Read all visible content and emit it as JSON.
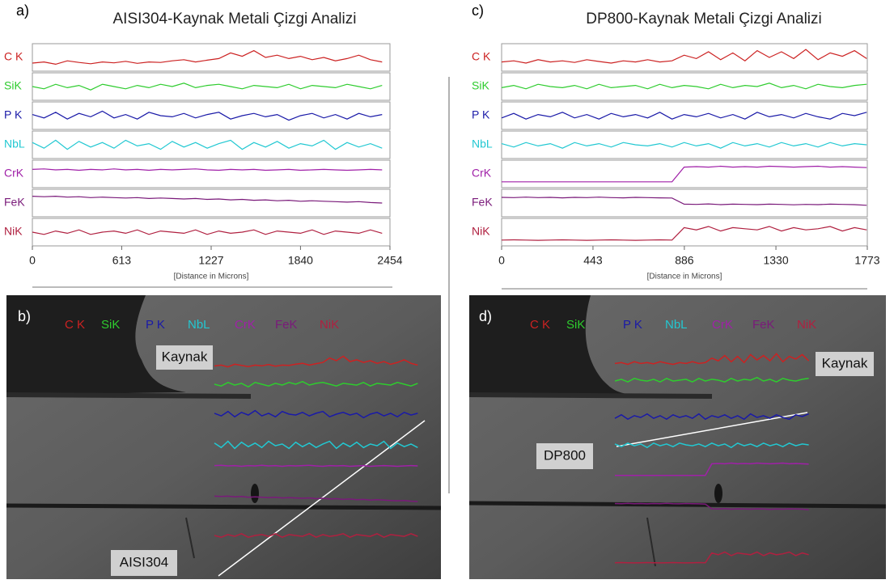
{
  "chart_data": [
    {
      "type": "line",
      "label": "a)",
      "title": "AISI304-Kaynak Metali Çizgi Analizi",
      "x_label": "[Distance in Microns]",
      "xlim": [
        0,
        2454
      ],
      "xticks": [
        0,
        613,
        1227,
        1840,
        2454
      ],
      "ylim": [
        0,
        100
      ],
      "x": [
        0,
        80,
        160,
        240,
        320,
        400,
        480,
        560,
        640,
        720,
        800,
        880,
        960,
        1040,
        1120,
        1200,
        1280,
        1360,
        1440,
        1520,
        1600,
        1680,
        1760,
        1840,
        1920,
        2000,
        2080,
        2160,
        2240,
        2320,
        2400
      ],
      "series": [
        {
          "name": "C K",
          "color": "#cc2222",
          "values": [
            25,
            30,
            20,
            35,
            28,
            22,
            30,
            26,
            33,
            24,
            30,
            28,
            35,
            40,
            30,
            38,
            45,
            70,
            55,
            80,
            50,
            60,
            45,
            55,
            40,
            50,
            35,
            45,
            60,
            40,
            30
          ]
        },
        {
          "name": "SiK",
          "color": "#2ecc2e",
          "values": [
            50,
            40,
            60,
            45,
            55,
            35,
            60,
            50,
            40,
            55,
            45,
            60,
            50,
            65,
            45,
            55,
            60,
            50,
            40,
            55,
            50,
            45,
            60,
            40,
            55,
            50,
            45,
            60,
            50,
            40,
            55
          ]
        },
        {
          "name": "P K",
          "color": "#1a1aa8",
          "values": [
            55,
            40,
            65,
            35,
            60,
            45,
            70,
            40,
            55,
            35,
            65,
            50,
            45,
            60,
            40,
            55,
            65,
            35,
            50,
            60,
            45,
            55,
            30,
            50,
            60,
            40,
            55,
            35,
            60,
            45,
            55
          ]
        },
        {
          "name": "NbL",
          "color": "#22c8d2",
          "values": [
            60,
            35,
            70,
            30,
            65,
            40,
            60,
            35,
            70,
            45,
            55,
            30,
            65,
            40,
            60,
            35,
            55,
            70,
            30,
            60,
            40,
            65,
            35,
            55,
            45,
            70,
            30,
            60,
            40,
            55,
            35
          ]
        },
        {
          "name": "CrK",
          "color": "#a020a8",
          "values": [
            70,
            72,
            68,
            70,
            66,
            70,
            68,
            72,
            68,
            70,
            66,
            70,
            68,
            70,
            72,
            68,
            66,
            70,
            68,
            70,
            66,
            68,
            70,
            66,
            68,
            70,
            68,
            66,
            68,
            70,
            68
          ]
        },
        {
          "name": "FeK",
          "color": "#7a1a7a",
          "values": [
            80,
            78,
            80,
            76,
            78,
            74,
            76,
            74,
            72,
            74,
            70,
            72,
            70,
            68,
            70,
            66,
            68,
            64,
            66,
            62,
            64,
            60,
            62,
            58,
            60,
            58,
            56,
            54,
            56,
            52,
            50
          ]
        },
        {
          "name": "NiK",
          "color": "#b02040",
          "values": [
            50,
            40,
            55,
            45,
            60,
            40,
            50,
            55,
            45,
            60,
            40,
            55,
            50,
            45,
            60,
            40,
            55,
            45,
            50,
            60,
            40,
            55,
            50,
            45,
            60,
            40,
            55,
            50,
            45,
            60,
            45
          ]
        }
      ]
    },
    {
      "type": "line",
      "label": "c)",
      "title": "DP800-Kaynak Metali Çizgi Analizi",
      "x_label": "[Distance in Microns]",
      "xlim": [
        0,
        1773
      ],
      "xticks": [
        0,
        443,
        886,
        1330,
        1773
      ],
      "ylim": [
        0,
        100
      ],
      "x": [
        0,
        59,
        118,
        177,
        236,
        295,
        354,
        413,
        472,
        531,
        590,
        649,
        708,
        767,
        826,
        885,
        944,
        1003,
        1062,
        1121,
        1180,
        1239,
        1298,
        1357,
        1416,
        1475,
        1534,
        1593,
        1652,
        1711,
        1770
      ],
      "series": [
        {
          "name": "C K",
          "color": "#cc2222",
          "values": [
            30,
            35,
            25,
            40,
            30,
            35,
            28,
            40,
            32,
            25,
            35,
            30,
            40,
            30,
            35,
            60,
            45,
            75,
            40,
            70,
            35,
            80,
            50,
            75,
            45,
            85,
            40,
            70,
            55,
            80,
            45
          ]
        },
        {
          "name": "SiK",
          "color": "#2ecc2e",
          "values": [
            45,
            55,
            40,
            60,
            50,
            45,
            55,
            40,
            60,
            45,
            50,
            55,
            40,
            60,
            45,
            55,
            50,
            40,
            60,
            45,
            55,
            50,
            65,
            45,
            55,
            40,
            60,
            50,
            45,
            55,
            60
          ]
        },
        {
          "name": "P K",
          "color": "#1a1aa8",
          "values": [
            40,
            60,
            35,
            55,
            45,
            65,
            40,
            55,
            35,
            60,
            45,
            55,
            40,
            65,
            35,
            55,
            45,
            60,
            40,
            55,
            35,
            65,
            45,
            55,
            40,
            60,
            45,
            35,
            60,
            50,
            65
          ]
        },
        {
          "name": "NbL",
          "color": "#22c8d2",
          "values": [
            55,
            40,
            60,
            45,
            55,
            35,
            60,
            45,
            55,
            40,
            60,
            50,
            45,
            55,
            40,
            60,
            45,
            55,
            35,
            60,
            45,
            55,
            40,
            60,
            45,
            55,
            40,
            60,
            45,
            55,
            50
          ]
        },
        {
          "name": "CrK",
          "color": "#a020a8",
          "values": [
            15,
            15,
            15,
            15,
            15,
            15,
            15,
            15,
            15,
            15,
            15,
            15,
            15,
            15,
            15,
            80,
            82,
            80,
            84,
            80,
            82,
            80,
            84,
            82,
            80,
            82,
            84,
            80,
            82,
            80,
            78
          ]
        },
        {
          "name": "FeK",
          "color": "#7a1a7a",
          "values": [
            75,
            74,
            76,
            74,
            75,
            73,
            75,
            74,
            76,
            74,
            73,
            75,
            74,
            73,
            72,
            45,
            44,
            46,
            43,
            45,
            44,
            43,
            45,
            44,
            42,
            44,
            43,
            45,
            44,
            43,
            40
          ]
        },
        {
          "name": "NiK",
          "color": "#b02040",
          "values": [
            15,
            16,
            15,
            14,
            15,
            16,
            15,
            14,
            15,
            16,
            15,
            14,
            15,
            16,
            15,
            70,
            60,
            75,
            55,
            70,
            65,
            60,
            75,
            55,
            70,
            60,
            65,
            75,
            55,
            70,
            60
          ]
        }
      ]
    }
  ],
  "images": [
    {
      "label": "b)",
      "weld_label": "Kaynak",
      "sample_label": "AISI304"
    },
    {
      "label": "d)",
      "weld_label": "Kaynak",
      "sample_label": "DP800"
    }
  ]
}
